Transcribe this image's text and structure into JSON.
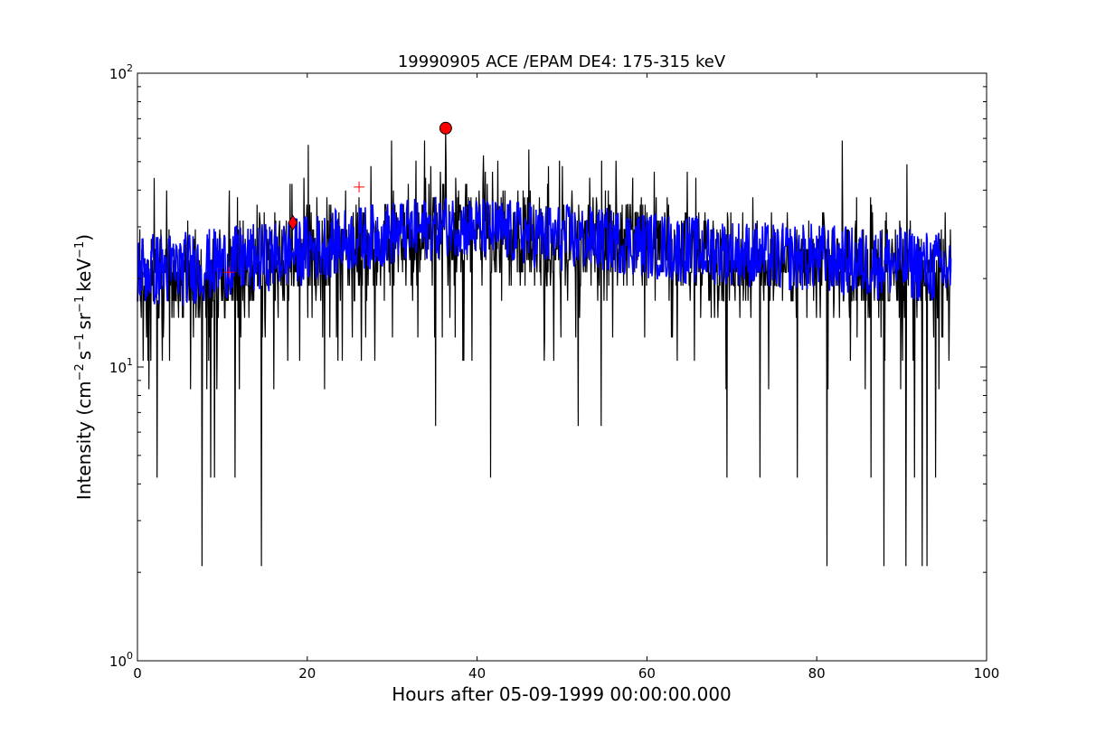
{
  "chart_data": {
    "type": "line",
    "title": "19990905 ACE /EPAM DE4: 175-315 keV",
    "xlabel": "Hours after 05-09-1999 00:00:00.000",
    "ylabel_main": "Intensity (cm",
    "ylabel_unit": "s",
    "ylabel_unit2": "sr",
    "ylabel_unit3": "keV",
    "ylabel_exp1": "−2",
    "ylabel_exp2": "−1",
    "ylabel_exp3": "−1",
    "ylabel_exp4": "−1",
    "ylabel_close": ")",
    "xlim": [
      0,
      100
    ],
    "ylim": [
      1,
      100
    ],
    "yscale": "log",
    "grid": false,
    "x_ticks": [
      "0",
      "20",
      "40",
      "60",
      "80",
      "100"
    ],
    "x_tick_values": [
      0,
      20,
      40,
      60,
      80,
      100
    ],
    "y_ticks": [
      {
        "base": "10",
        "exp": "0",
        "value": 1
      },
      {
        "base": "10",
        "exp": "1",
        "value": 10
      },
      {
        "base": "10",
        "exp": "2",
        "value": 100
      }
    ],
    "series": [
      {
        "role": "raw",
        "color": "#000000",
        "x_range": [
          0,
          95.8
        ],
        "envelope_hours": [
          0,
          10,
          20,
          30,
          36,
          40,
          50,
          60,
          70,
          80,
          90,
          95.8
        ],
        "typical_low": [
          12,
          12,
          15,
          17,
          18,
          18,
          17,
          17,
          15,
          14,
          13,
          13
        ],
        "typical_high": [
          33,
          33,
          38,
          43,
          45,
          45,
          42,
          40,
          37,
          35,
          34,
          33
        ],
        "spikes_down": [
          {
            "x": 7.6,
            "y": 2.1
          },
          {
            "x": 14.6,
            "y": 2.1
          },
          {
            "x": 81.2,
            "y": 2.1
          },
          {
            "x": 87.9,
            "y": 2.1
          },
          {
            "x": 90.5,
            "y": 2.1
          },
          {
            "x": 92.4,
            "y": 2.1
          },
          {
            "x": 93.0,
            "y": 2.1
          },
          {
            "x": 2.3,
            "y": 4.2
          },
          {
            "x": 8.6,
            "y": 4.2
          },
          {
            "x": 9.1,
            "y": 4.2
          },
          {
            "x": 11.5,
            "y": 4.2
          },
          {
            "x": 41.6,
            "y": 4.2
          },
          {
            "x": 69.4,
            "y": 4.2
          },
          {
            "x": 73.3,
            "y": 4.2
          },
          {
            "x": 77.7,
            "y": 4.2
          },
          {
            "x": 86.4,
            "y": 4.2
          },
          {
            "x": 91.5,
            "y": 4.2
          },
          {
            "x": 94.0,
            "y": 4.2
          },
          {
            "x": 35.1,
            "y": 6.3
          },
          {
            "x": 51.9,
            "y": 6.3
          },
          {
            "x": 54.6,
            "y": 6.3
          }
        ],
        "spikes_up": [
          {
            "x": 2.0,
            "y": 44
          },
          {
            "x": 20.1,
            "y": 57
          },
          {
            "x": 29.9,
            "y": 59
          },
          {
            "x": 33.8,
            "y": 59
          },
          {
            "x": 36.3,
            "y": 64
          },
          {
            "x": 46.1,
            "y": 55
          },
          {
            "x": 83.0,
            "y": 59
          },
          {
            "x": 90.6,
            "y": 49
          }
        ]
      },
      {
        "role": "smoothed",
        "color": "#0000ff",
        "x": [
          0,
          5,
          10,
          15,
          20,
          25,
          30,
          35,
          37,
          40,
          45,
          50,
          55,
          60,
          65,
          70,
          75,
          80,
          85,
          90,
          95,
          95.8
        ],
        "center": [
          21,
          21,
          22,
          23,
          25,
          27,
          29,
          30,
          31,
          30,
          29,
          28,
          27,
          26,
          25,
          24,
          23,
          23,
          22,
          22,
          21,
          21
        ],
        "spread_low": [
          16,
          16,
          17,
          18,
          19,
          21,
          22,
          23,
          24,
          23,
          22,
          21,
          21,
          20,
          19,
          19,
          18,
          18,
          17,
          17,
          16,
          16
        ],
        "spread_high": [
          29,
          29,
          30,
          31,
          33,
          35,
          37,
          38,
          39,
          38,
          37,
          36,
          35,
          34,
          33,
          32,
          31,
          31,
          30,
          30,
          29,
          29
        ]
      }
    ],
    "markers": [
      {
        "shape": "circle",
        "x": 36.3,
        "y": 65,
        "fill": "#ff0000",
        "stroke": "#000000"
      },
      {
        "shape": "diamond",
        "x": 18.3,
        "y": 31,
        "fill": "#ff0000",
        "stroke": "#000000"
      },
      {
        "shape": "plus",
        "x": 10.8,
        "y": 21,
        "fill": "none",
        "stroke": "#ff0000"
      },
      {
        "shape": "plus",
        "x": 26.1,
        "y": 41,
        "fill": "none",
        "stroke": "#ff0000"
      }
    ]
  }
}
